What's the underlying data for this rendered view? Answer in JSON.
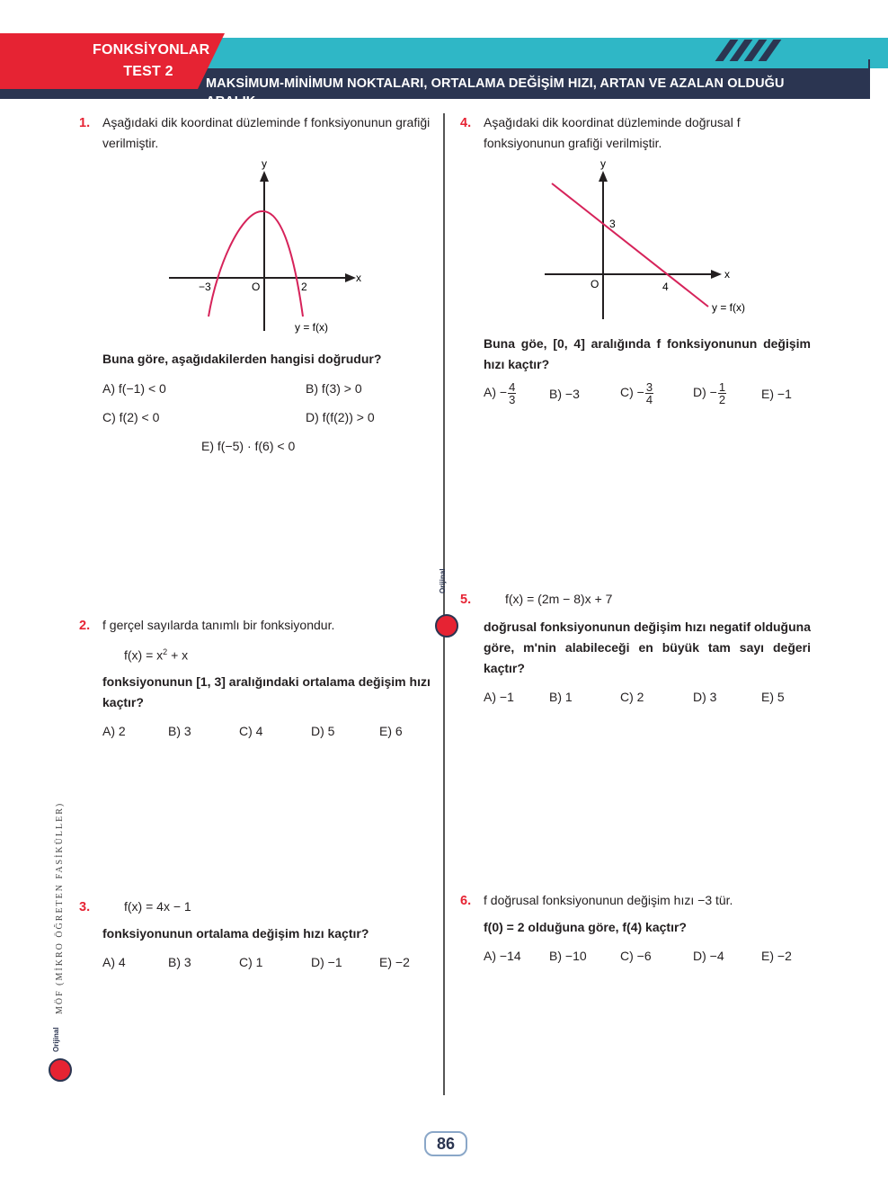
{
  "header": {
    "topic": "FONKSİYONLAR",
    "test": "TEST 2",
    "subtitle": "MAKSİMUM-MİNİMUM NOKTALARI, ORTALAMA DEĞİŞİM HIZI, ARTAN VE AZALAN OLDUĞU ARALIK"
  },
  "q1": {
    "num": "1.",
    "text": "Aşağıdaki dik koordinat düzleminde f fonksiyonunun grafiği verilmiştir.",
    "graph": {
      "x_label": "x",
      "y_label": "y",
      "origin": "O",
      "tick_left": "−3",
      "tick_right": "2",
      "curve_label": "y = f(x)"
    },
    "question": "Buna göre, aşağıdakilerden hangisi doğrudur?",
    "options": {
      "a": "A) f(−1) < 0",
      "b": "B) f(3) > 0",
      "c": "C) f(2) < 0",
      "d": "D) f(f(2)) > 0",
      "e": "E) f(−5) · f(6) < 0"
    }
  },
  "q2": {
    "num": "2.",
    "text": "f gerçel sayılarda tanımlı bir fonksiyondur.",
    "formula_base": "f(x) = x",
    "formula_exp": "2",
    "formula_tail": " + x",
    "question": "fonksiyonunun [1, 3] aralığındaki ortalama değişim hızı kaçtır?",
    "options": {
      "a": "A) 2",
      "b": "B) 3",
      "c": "C) 4",
      "d": "D) 5",
      "e": "E) 6"
    }
  },
  "q3": {
    "num": "3.",
    "formula": "f(x) = 4x − 1",
    "question": "fonksiyonunun ortalama değişim hızı kaçtır?",
    "options": {
      "a": "A) 4",
      "b": "B) 3",
      "c": "C) 1",
      "d": "D) −1",
      "e": "E) −2"
    }
  },
  "q4": {
    "num": "4.",
    "text": "Aşağıdaki dik koordinat düzleminde doğrusal f fonksiyonunun grafiği verilmiştir.",
    "graph": {
      "x_label": "x",
      "y_label": "y",
      "origin": "O",
      "y_intercept": "3",
      "x_intercept": "4",
      "line_label": "y = f(x)"
    },
    "question": "Buna göe, [0, 4] aralığında f fonksiyonunun değişim hızı kaçtır?",
    "options": {
      "a_prefix": "A) −",
      "a_num": "4",
      "a_den": "3",
      "b": "B) −3",
      "c_prefix": "C) −",
      "c_num": "3",
      "c_den": "4",
      "d_prefix": "D) −",
      "d_num": "1",
      "d_den": "2",
      "e": "E) −1"
    }
  },
  "q5": {
    "num": "5.",
    "formula": "f(x) = (2m − 8)x + 7",
    "question": "doğrusal fonksiyonunun değişim hızı negatif olduğuna göre, m'nin alabileceği en büyük tam sayı değeri kaçtır?",
    "options": {
      "a": "A) −1",
      "b": "B) 1",
      "c": "C) 2",
      "d": "D) 3",
      "e": "E) 5"
    }
  },
  "q6": {
    "num": "6.",
    "text": "f doğrusal fonksiyonunun değişim hızı −3 tür.",
    "question": "f(0) = 2 olduğuna göre, f(4) kaçtır?",
    "options": {
      "a": "A) −14",
      "b": "B) −10",
      "c": "C) −6",
      "d": "D) −4",
      "e": "E) −2"
    }
  },
  "side": {
    "series": "MÖF (MİKRO ÖĞRETEN FASİKÜLLER)",
    "brand": "Orijinal"
  },
  "page_number": "86",
  "colors": {
    "red": "#e62333",
    "teal": "#2fb7c6",
    "navy": "#2b3551",
    "curve": "#d6235a"
  }
}
